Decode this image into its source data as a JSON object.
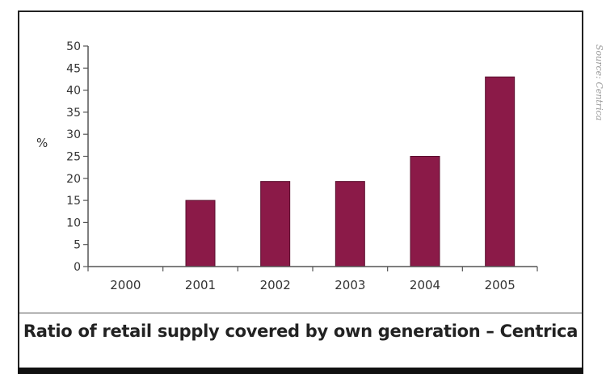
{
  "chart_data": {
    "type": "bar",
    "title": "Ratio of retail supply covered by own generation – Centrica",
    "xlabel": "",
    "ylabel": "%",
    "categories": [
      "2000",
      "2001",
      "2002",
      "2003",
      "2004",
      "2005"
    ],
    "values": [
      0,
      15,
      19.3,
      19.3,
      25,
      43
    ],
    "ylim": [
      0,
      50
    ],
    "yticks": [
      0,
      5,
      10,
      15,
      20,
      25,
      30,
      35,
      40,
      45,
      50
    ],
    "ytick_labels": [
      "0",
      "5",
      "10",
      "15",
      "20",
      "25",
      "30",
      "35",
      "40",
      "45",
      "50"
    ],
    "grid": false,
    "bar_color": "#8b1a48",
    "source": "Source: Centrica"
  }
}
